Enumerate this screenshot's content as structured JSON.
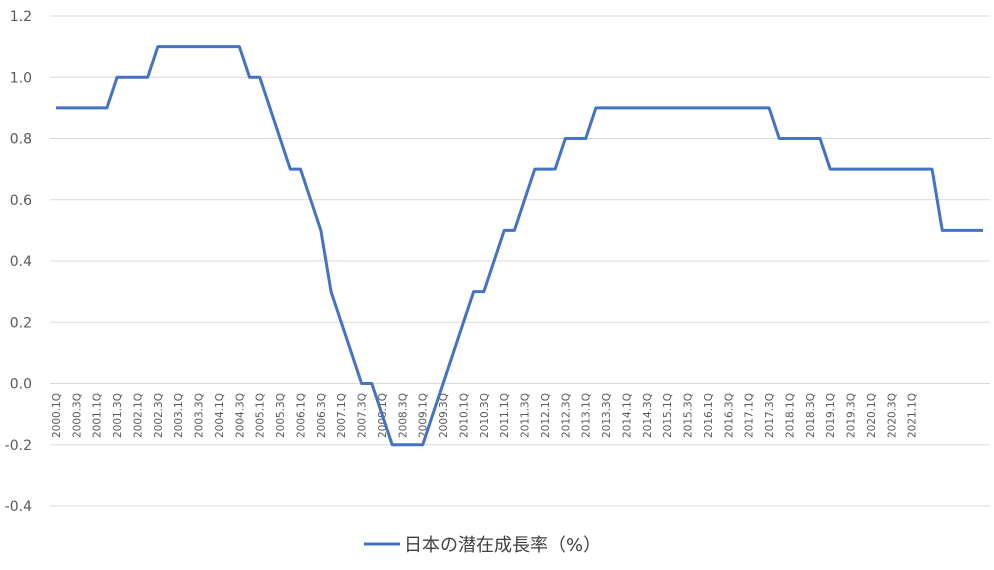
{
  "chart_data": {
    "type": "line",
    "title": "",
    "xlabel": "",
    "ylabel": "",
    "ylim": [
      -0.4,
      1.2
    ],
    "y_ticks": [
      "1.2",
      "1.0",
      "0.8",
      "0.6",
      "0.4",
      "0.2",
      "0.0",
      "-0.2",
      "-0.4"
    ],
    "x_tick_labels": [
      "2000.1Q",
      "2000.3Q",
      "2001.1Q",
      "2001.3Q",
      "2002.1Q",
      "2002.3Q",
      "2003.1Q",
      "2003.3Q",
      "2004.1Q",
      "2004.3Q",
      "2005.1Q",
      "2005.3Q",
      "2006.1Q",
      "2006.3Q",
      "2007.1Q",
      "2007.3Q",
      "2008.1Q",
      "2008.3Q",
      "2009.1Q",
      "2009.3Q",
      "2010.1Q",
      "2010.3Q",
      "2011.1Q",
      "2011.3Q",
      "2012.1Q",
      "2012.3Q",
      "2013.1Q",
      "2013.3Q",
      "2014.1Q",
      "2014.3Q",
      "2015.1Q",
      "2015.3Q",
      "2016.1Q",
      "2016.3Q",
      "2017.1Q",
      "2017.3Q",
      "2018.1Q",
      "2018.3Q",
      "2019.1Q",
      "2019.3Q",
      "2020.1Q",
      "2020.3Q",
      "2021.1Q"
    ],
    "grid": true,
    "legend_position": "bottom",
    "series": [
      {
        "name": "日本の潜在成長率（%）",
        "color": "#4472C4",
        "values": [
          0.9,
          0.9,
          0.9,
          0.9,
          0.9,
          0.9,
          1.0,
          1.0,
          1.0,
          1.0,
          1.1,
          1.1,
          1.1,
          1.1,
          1.1,
          1.1,
          1.1,
          1.1,
          1.1,
          1.0,
          1.0,
          0.9,
          0.8,
          0.7,
          0.7,
          0.6,
          0.5,
          0.3,
          0.2,
          0.1,
          0.0,
          0.0,
          -0.1,
          -0.2,
          -0.2,
          -0.2,
          -0.2,
          -0.1,
          0.0,
          0.1,
          0.2,
          0.3,
          0.3,
          0.4,
          0.5,
          0.5,
          0.6,
          0.7,
          0.7,
          0.7,
          0.8,
          0.8,
          0.8,
          0.9,
          0.9,
          0.9,
          0.9,
          0.9,
          0.9,
          0.9,
          0.9,
          0.9,
          0.9,
          0.9,
          0.9,
          0.9,
          0.9,
          0.9,
          0.9,
          0.9,
          0.9,
          0.8,
          0.8,
          0.8,
          0.8,
          0.8,
          0.7,
          0.7,
          0.7,
          0.7,
          0.7,
          0.7,
          0.7,
          0.7,
          0.7,
          0.7,
          0.7,
          0.5,
          0.5,
          0.5,
          0.5,
          0.5
        ]
      }
    ]
  }
}
